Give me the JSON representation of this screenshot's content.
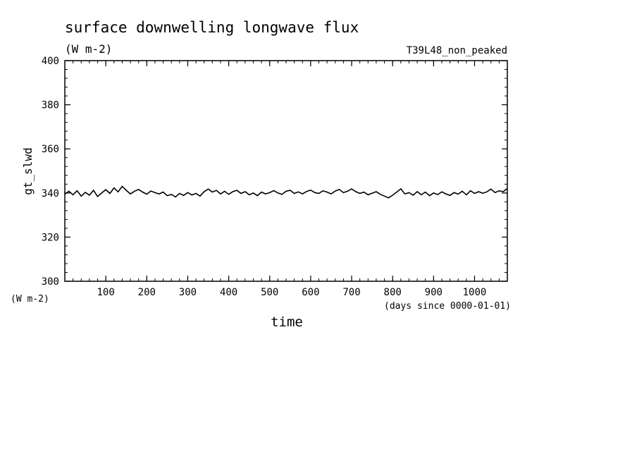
{
  "chart_data": {
    "type": "line",
    "title": "surface downwelling longwave flux",
    "title_units": "(W m-2)",
    "run_label": "T39L48_non_peaked",
    "xlabel": "time",
    "xunits": "(days since 0000-01-01)",
    "ylabel": "gt_slwd",
    "yunits": "(W m-2)",
    "xlim": [
      0,
      1080
    ],
    "ylim": [
      300,
      400
    ],
    "xticks": [
      100,
      200,
      300,
      400,
      500,
      600,
      700,
      800,
      900,
      1000
    ],
    "yticks": [
      300,
      320,
      340,
      360,
      380,
      400
    ],
    "grid": false,
    "line_color": "#000000",
    "series": [
      {
        "x": [
          0,
          10,
          20,
          30,
          40,
          50,
          60,
          70,
          80,
          90,
          100,
          110,
          120,
          130,
          140,
          150,
          160,
          170,
          180,
          190,
          200,
          210,
          220,
          230,
          240,
          250,
          260,
          270,
          280,
          290,
          300,
          310,
          320,
          330,
          340,
          350,
          360,
          370,
          380,
          390,
          400,
          410,
          420,
          430,
          440,
          450,
          460,
          470,
          480,
          490,
          500,
          510,
          520,
          530,
          540,
          550,
          560,
          570,
          580,
          590,
          600,
          610,
          620,
          630,
          640,
          650,
          660,
          670,
          680,
          690,
          700,
          710,
          720,
          730,
          740,
          750,
          760,
          770,
          780,
          790,
          800,
          810,
          820,
          830,
          840,
          850,
          860,
          870,
          880,
          890,
          900,
          910,
          920,
          930,
          940,
          950,
          960,
          970,
          980,
          990,
          1000,
          1010,
          1020,
          1030,
          1040,
          1050,
          1060,
          1070,
          1080
        ],
        "values": [
          339.5,
          340.8,
          339.2,
          341.0,
          338.6,
          340.3,
          339.0,
          341.2,
          338.4,
          340.0,
          341.5,
          339.8,
          342.3,
          340.5,
          343.0,
          341.2,
          339.6,
          340.8,
          341.6,
          340.4,
          339.5,
          340.9,
          340.2,
          339.6,
          340.4,
          338.8,
          339.4,
          338.2,
          339.8,
          338.9,
          340.2,
          339.1,
          339.8,
          338.6,
          340.6,
          341.8,
          340.4,
          341.2,
          339.6,
          340.8,
          339.4,
          340.6,
          341.2,
          339.8,
          340.6,
          339.2,
          340.0,
          338.8,
          340.4,
          339.6,
          340.2,
          341.1,
          340.0,
          339.4,
          340.8,
          341.2,
          339.8,
          340.5,
          339.6,
          340.7,
          341.3,
          340.2,
          339.8,
          341.0,
          340.4,
          339.6,
          340.9,
          341.6,
          340.2,
          340.8,
          341.9,
          340.6,
          339.8,
          340.4,
          339.2,
          339.9,
          340.6,
          339.4,
          338.6,
          337.8,
          339.0,
          340.4,
          341.9,
          339.6,
          340.2,
          339.0,
          340.6,
          339.2,
          340.4,
          338.8,
          340.0,
          339.3,
          340.5,
          339.6,
          338.9,
          340.2,
          339.5,
          340.8,
          339.2,
          341.0,
          339.8,
          340.6,
          339.9,
          340.5,
          341.8,
          340.2,
          341.0,
          340.6,
          342.1
        ]
      }
    ]
  }
}
